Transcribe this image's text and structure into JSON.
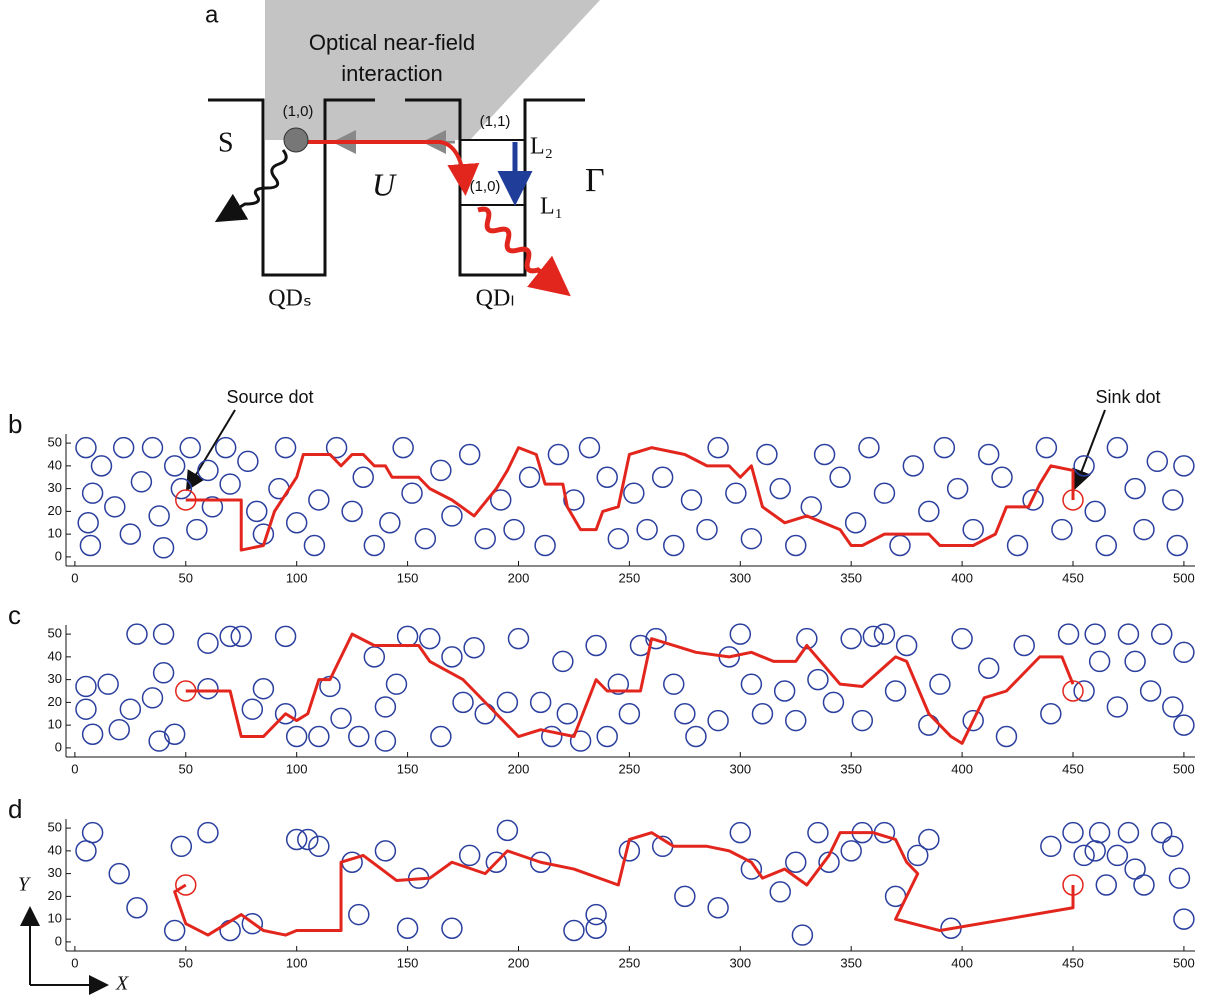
{
  "diagram": {
    "label": "a",
    "title_lines": [
      "Optical near-field",
      "interaction"
    ],
    "state_source": "(1,0)",
    "state_upper": "(1,1)",
    "state_lower": "(1,0)",
    "s": "S",
    "u": "U",
    "l2": "L₂",
    "l1": "L₁",
    "gamma": "Γ",
    "qd_s": "QDₛ",
    "qd_l": "QDₗ"
  },
  "annotations": {
    "source": "Source dot",
    "sink": "Sink dot",
    "y_axis": "Y",
    "x_axis": "X"
  },
  "chart_data": [
    {
      "type": "scatter",
      "label": "b",
      "color": "#2b3f9e",
      "path_color": "#e3261d",
      "xlim": [
        -4,
        505
      ],
      "ylim": [
        -4,
        54
      ],
      "xticks": [
        0,
        50,
        100,
        150,
        200,
        250,
        300,
        350,
        400,
        450,
        500
      ],
      "yticks": [
        0,
        10,
        20,
        30,
        40,
        50
      ],
      "source": [
        50,
        25
      ],
      "sink": [
        450,
        25
      ],
      "points": [
        [
          5,
          48
        ],
        [
          8,
          28
        ],
        [
          6,
          15
        ],
        [
          7,
          5
        ],
        [
          12,
          40
        ],
        [
          18,
          22
        ],
        [
          22,
          48
        ],
        [
          25,
          10
        ],
        [
          30,
          33
        ],
        [
          35,
          48
        ],
        [
          38,
          18
        ],
        [
          40,
          4
        ],
        [
          45,
          40
        ],
        [
          48,
          30
        ],
        [
          52,
          48
        ],
        [
          55,
          12
        ],
        [
          60,
          38
        ],
        [
          62,
          22
        ],
        [
          68,
          48
        ],
        [
          70,
          32
        ],
        [
          78,
          42
        ],
        [
          82,
          20
        ],
        [
          85,
          10
        ],
        [
          92,
          30
        ],
        [
          95,
          48
        ],
        [
          100,
          15
        ],
        [
          108,
          5
        ],
        [
          110,
          25
        ],
        [
          118,
          48
        ],
        [
          125,
          20
        ],
        [
          130,
          35
        ],
        [
          135,
          5
        ],
        [
          142,
          15
        ],
        [
          148,
          48
        ],
        [
          152,
          28
        ],
        [
          158,
          8
        ],
        [
          165,
          38
        ],
        [
          170,
          18
        ],
        [
          178,
          45
        ],
        [
          185,
          8
        ],
        [
          192,
          25
        ],
        [
          198,
          12
        ],
        [
          205,
          35
        ],
        [
          212,
          5
        ],
        [
          218,
          45
        ],
        [
          225,
          25
        ],
        [
          232,
          48
        ],
        [
          240,
          35
        ],
        [
          245,
          8
        ],
        [
          252,
          28
        ],
        [
          258,
          12
        ],
        [
          265,
          35
        ],
        [
          270,
          5
        ],
        [
          278,
          25
        ],
        [
          285,
          12
        ],
        [
          290,
          48
        ],
        [
          298,
          28
        ],
        [
          305,
          8
        ],
        [
          312,
          45
        ],
        [
          318,
          30
        ],
        [
          325,
          5
        ],
        [
          332,
          22
        ],
        [
          338,
          45
        ],
        [
          345,
          35
        ],
        [
          352,
          15
        ],
        [
          358,
          48
        ],
        [
          365,
          28
        ],
        [
          372,
          5
        ],
        [
          378,
          40
        ],
        [
          385,
          20
        ],
        [
          392,
          48
        ],
        [
          398,
          30
        ],
        [
          405,
          12
        ],
        [
          412,
          45
        ],
        [
          418,
          35
        ],
        [
          425,
          5
        ],
        [
          432,
          25
        ],
        [
          438,
          48
        ],
        [
          445,
          12
        ],
        [
          455,
          40
        ],
        [
          460,
          20
        ],
        [
          465,
          5
        ],
        [
          470,
          48
        ],
        [
          478,
          30
        ],
        [
          482,
          12
        ],
        [
          488,
          42
        ],
        [
          495,
          25
        ],
        [
          497,
          5
        ],
        [
          500,
          40
        ]
      ],
      "path_x": [
        50,
        75,
        75,
        85,
        90,
        100,
        103,
        115,
        120,
        125,
        130,
        135,
        140,
        143,
        155,
        160,
        170,
        180,
        190,
        195,
        200,
        208,
        212,
        220,
        222,
        228,
        235,
        238,
        245,
        250,
        260,
        275,
        285,
        295,
        300,
        305,
        310,
        320,
        330,
        345,
        350,
        355,
        365,
        385,
        390,
        405,
        415,
        420,
        430,
        435,
        440,
        450,
        450
      ],
      "path_y": [
        25,
        25,
        3,
        5,
        20,
        35,
        45,
        45,
        40,
        45,
        45,
        40,
        40,
        35,
        35,
        30,
        25,
        18,
        30,
        38,
        48,
        45,
        32,
        32,
        22,
        12,
        12,
        20,
        22,
        45,
        48,
        45,
        40,
        40,
        35,
        40,
        22,
        15,
        18,
        12,
        5,
        5,
        10,
        10,
        5,
        5,
        10,
        22,
        22,
        32,
        40,
        38,
        25
      ]
    },
    {
      "type": "scatter",
      "label": "c",
      "color": "#2b3f9e",
      "path_color": "#e3261d",
      "xlim": [
        -4,
        505
      ],
      "ylim": [
        -4,
        54
      ],
      "xticks": [
        0,
        50,
        100,
        150,
        200,
        250,
        300,
        350,
        400,
        450,
        500
      ],
      "yticks": [
        0,
        10,
        20,
        30,
        40,
        50
      ],
      "source": [
        50,
        25
      ],
      "sink": [
        450,
        25
      ],
      "points": [
        [
          5,
          27
        ],
        [
          5,
          17
        ],
        [
          8,
          6
        ],
        [
          15,
          28
        ],
        [
          20,
          8
        ],
        [
          25,
          17
        ],
        [
          28,
          50
        ],
        [
          35,
          22
        ],
        [
          38,
          3
        ],
        [
          40,
          33
        ],
        [
          40,
          50
        ],
        [
          45,
          6
        ],
        [
          60,
          46
        ],
        [
          60,
          26
        ],
        [
          70,
          49
        ],
        [
          75,
          49
        ],
        [
          80,
          17
        ],
        [
          85,
          26
        ],
        [
          95,
          15
        ],
        [
          95,
          49
        ],
        [
          100,
          5
        ],
        [
          110,
          5
        ],
        [
          115,
          27
        ],
        [
          120,
          13
        ],
        [
          128,
          5
        ],
        [
          135,
          40
        ],
        [
          140,
          18
        ],
        [
          140,
          3
        ],
        [
          145,
          28
        ],
        [
          150,
          49
        ],
        [
          160,
          48
        ],
        [
          165,
          5
        ],
        [
          170,
          40
        ],
        [
          175,
          20
        ],
        [
          180,
          44
        ],
        [
          185,
          15
        ],
        [
          195,
          20
        ],
        [
          200,
          48
        ],
        [
          210,
          20
        ],
        [
          215,
          5
        ],
        [
          220,
          38
        ],
        [
          222,
          15
        ],
        [
          228,
          3
        ],
        [
          235,
          45
        ],
        [
          240,
          5
        ],
        [
          245,
          28
        ],
        [
          250,
          15
        ],
        [
          255,
          45
        ],
        [
          262,
          48
        ],
        [
          270,
          28
        ],
        [
          275,
          15
        ],
        [
          280,
          5
        ],
        [
          290,
          12
        ],
        [
          295,
          40
        ],
        [
          300,
          50
        ],
        [
          305,
          28
        ],
        [
          310,
          15
        ],
        [
          320,
          25
        ],
        [
          325,
          12
        ],
        [
          330,
          48
        ],
        [
          335,
          30
        ],
        [
          342,
          20
        ],
        [
          350,
          48
        ],
        [
          355,
          12
        ],
        [
          360,
          49
        ],
        [
          365,
          50
        ],
        [
          370,
          25
        ],
        [
          375,
          45
        ],
        [
          385,
          10
        ],
        [
          390,
          28
        ],
        [
          400,
          48
        ],
        [
          405,
          12
        ],
        [
          412,
          35
        ],
        [
          420,
          5
        ],
        [
          428,
          45
        ],
        [
          440,
          15
        ],
        [
          448,
          50
        ],
        [
          455,
          25
        ],
        [
          460,
          50
        ],
        [
          462,
          38
        ],
        [
          470,
          18
        ],
        [
          475,
          50
        ],
        [
          478,
          38
        ],
        [
          485,
          25
        ],
        [
          490,
          50
        ],
        [
          495,
          18
        ],
        [
          500,
          42
        ],
        [
          500,
          10
        ]
      ],
      "path_x": [
        50,
        70,
        75,
        85,
        95,
        100,
        105,
        110,
        115,
        125,
        135,
        155,
        160,
        175,
        180,
        200,
        210,
        225,
        235,
        240,
        255,
        260,
        270,
        280,
        295,
        305,
        315,
        325,
        330,
        345,
        355,
        370,
        375,
        385,
        395,
        400,
        405,
        410,
        420,
        430,
        435,
        445,
        450
      ],
      "path_y": [
        25,
        25,
        5,
        5,
        15,
        12,
        15,
        30,
        30,
        50,
        45,
        45,
        38,
        30,
        25,
        5,
        8,
        5,
        30,
        25,
        25,
        48,
        45,
        42,
        40,
        42,
        38,
        38,
        45,
        28,
        27,
        40,
        38,
        15,
        5,
        2,
        12,
        22,
        25,
        35,
        40,
        40,
        28
      ]
    },
    {
      "type": "scatter",
      "label": "d",
      "color": "#2b3f9e",
      "path_color": "#e3261d",
      "xlim": [
        -4,
        505
      ],
      "ylim": [
        -4,
        54
      ],
      "xticks": [
        0,
        50,
        100,
        150,
        200,
        250,
        300,
        350,
        400,
        450,
        500
      ],
      "yticks": [
        0,
        10,
        20,
        30,
        40,
        50
      ],
      "source": [
        50,
        25
      ],
      "sink": [
        450,
        25
      ],
      "points": [
        [
          5,
          40
        ],
        [
          8,
          48
        ],
        [
          20,
          30
        ],
        [
          28,
          15
        ],
        [
          45,
          5
        ],
        [
          48,
          42
        ],
        [
          60,
          48
        ],
        [
          70,
          5
        ],
        [
          80,
          8
        ],
        [
          100,
          45
        ],
        [
          105,
          45
        ],
        [
          110,
          42
        ],
        [
          125,
          35
        ],
        [
          128,
          12
        ],
        [
          140,
          40
        ],
        [
          150,
          6
        ],
        [
          155,
          28
        ],
        [
          170,
          6
        ],
        [
          178,
          38
        ],
        [
          190,
          35
        ],
        [
          195,
          49
        ],
        [
          210,
          35
        ],
        [
          225,
          5
        ],
        [
          235,
          6
        ],
        [
          235,
          12
        ],
        [
          250,
          40
        ],
        [
          265,
          42
        ],
        [
          275,
          20
        ],
        [
          290,
          15
        ],
        [
          300,
          48
        ],
        [
          305,
          32
        ],
        [
          318,
          22
        ],
        [
          325,
          35
        ],
        [
          328,
          3
        ],
        [
          335,
          48
        ],
        [
          340,
          35
        ],
        [
          350,
          40
        ],
        [
          355,
          48
        ],
        [
          365,
          48
        ],
        [
          370,
          20
        ],
        [
          380,
          38
        ],
        [
          385,
          45
        ],
        [
          395,
          6
        ],
        [
          440,
          42
        ],
        [
          450,
          48
        ],
        [
          455,
          38
        ],
        [
          460,
          40
        ],
        [
          462,
          48
        ],
        [
          465,
          25
        ],
        [
          470,
          38
        ],
        [
          475,
          48
        ],
        [
          478,
          32
        ],
        [
          482,
          25
        ],
        [
          490,
          48
        ],
        [
          495,
          42
        ],
        [
          498,
          28
        ],
        [
          500,
          10
        ]
      ],
      "path_x": [
        50,
        45,
        50,
        60,
        75,
        85,
        95,
        100,
        120,
        120,
        130,
        145,
        160,
        170,
        185,
        195,
        210,
        225,
        245,
        250,
        260,
        270,
        285,
        295,
        305,
        310,
        320,
        330,
        340,
        345,
        360,
        370,
        375,
        380,
        375,
        370,
        390,
        450,
        450
      ],
      "path_y": [
        25,
        22,
        8,
        3,
        12,
        5,
        3,
        5,
        5,
        35,
        38,
        27,
        28,
        35,
        30,
        40,
        35,
        32,
        25,
        45,
        48,
        42,
        42,
        40,
        35,
        28,
        32,
        25,
        38,
        48,
        48,
        45,
        35,
        30,
        20,
        10,
        5,
        15,
        25
      ]
    }
  ]
}
